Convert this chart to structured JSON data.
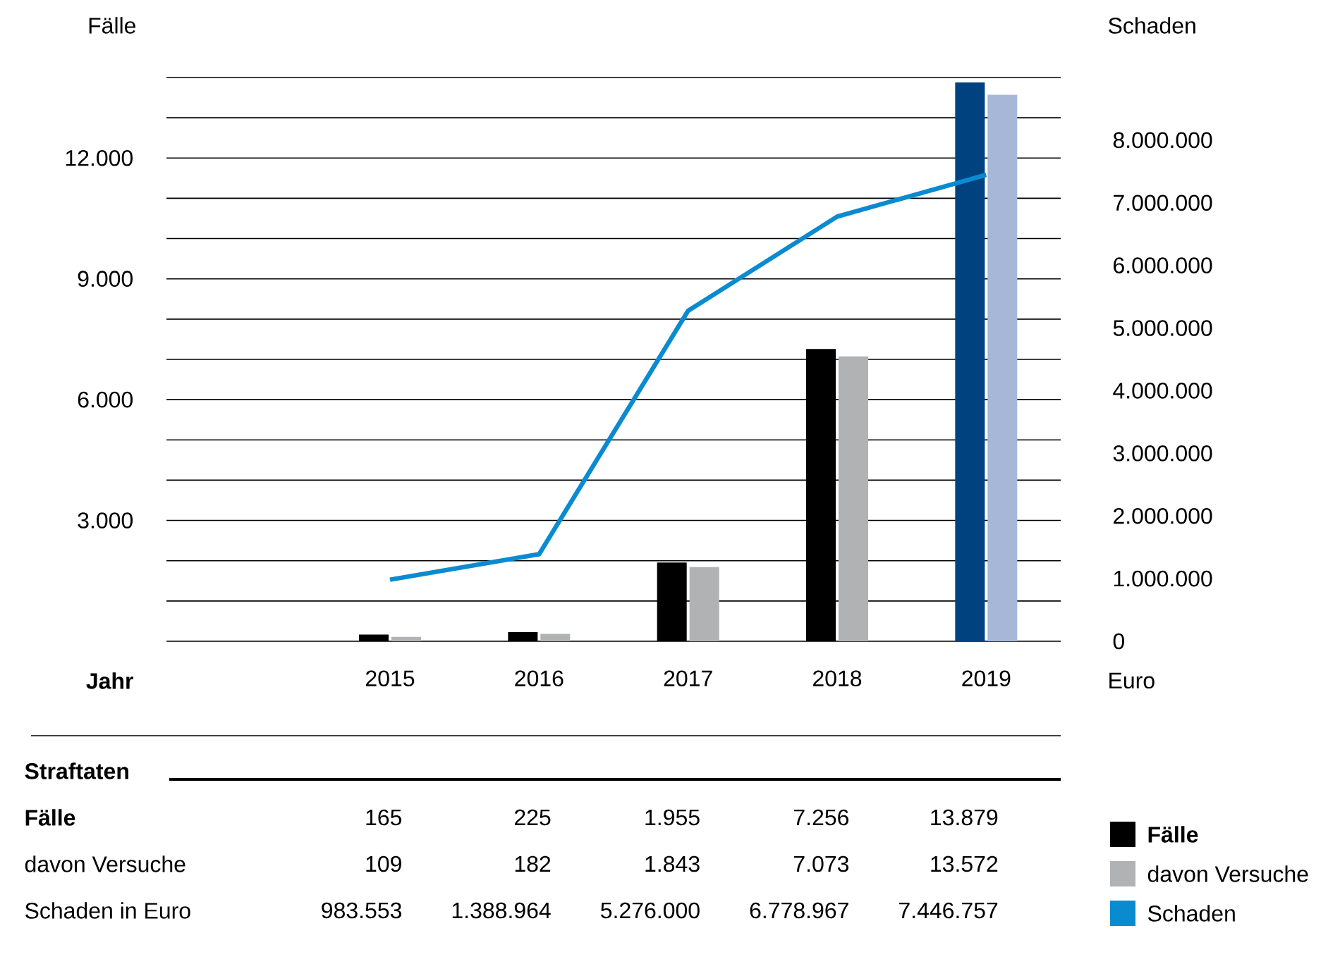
{
  "chart_data": {
    "type": "bar",
    "ylabel": "Fälle",
    "y2label": "Schaden",
    "xlabel": "Jahr",
    "categories": [
      null,
      "2015",
      "2016",
      "2017",
      "2018",
      "2019"
    ],
    "series": [
      {
        "name": "Fälle",
        "color": "#000000",
        "colors": [
          "#000000",
          "#000000",
          "#000000",
          "#000000",
          "#000000",
          "#00427f"
        ],
        "values": [
          null,
          165,
          225,
          1955,
          7256,
          13879
        ],
        "value_labels": [
          null,
          "165",
          "225",
          "1.955",
          "7.256",
          "13.879"
        ]
      },
      {
        "name": "davon Versuche",
        "color": "#b1b2b4",
        "colors": [
          "#b1b2b4",
          "#b1b2b4",
          "#b1b2b4",
          "#b1b2b4",
          "#b1b2b4",
          "#a7b7d8"
        ],
        "values": [
          null,
          109,
          182,
          1843,
          7073,
          13572
        ],
        "value_labels": [
          null,
          "109",
          "182",
          "1.843",
          "7.073",
          "13.572"
        ]
      },
      {
        "name": "Schaden",
        "type": "line",
        "axis": "y2",
        "color": "#0a8bd0",
        "values": [
          null,
          983553,
          1388964,
          5276000,
          6778967,
          7446757
        ],
        "value_labels": [
          null,
          "983.553",
          "1.388.964",
          "5.276.000",
          "6.778.967",
          "7.446.757"
        ]
      }
    ],
    "ylim": [
      0,
      14000
    ],
    "yticks": [
      {
        "value": 0,
        "label": null
      },
      {
        "value": 1000,
        "label": null
      },
      {
        "value": 2000,
        "label": null
      },
      {
        "value": 3000,
        "label": "3.000"
      },
      {
        "value": 4000,
        "label": null
      },
      {
        "value": 5000,
        "label": null
      },
      {
        "value": 6000,
        "label": "6.000"
      },
      {
        "value": 7000,
        "label": null
      },
      {
        "value": 8000,
        "label": null
      },
      {
        "value": 9000,
        "label": "9.000"
      },
      {
        "value": 10000,
        "label": null
      },
      {
        "value": 11000,
        "label": null
      },
      {
        "value": 12000,
        "label": "12.000"
      },
      {
        "value": 13000,
        "label": null
      },
      {
        "value": 14000,
        "label": null
      }
    ],
    "y2lim": [
      0,
      9000000
    ],
    "y2ticks": [
      0,
      {
        "value": 1000000,
        "label": "1.000.000"
      },
      {
        "value": 2000000,
        "label": "2.000.000"
      },
      {
        "value": 3000000,
        "label": "3.000.000"
      },
      {
        "value": 4000000,
        "label": "4.000.000"
      },
      {
        "value": 5000000,
        "label": "5.000.000"
      },
      {
        "value": 6000000,
        "label": "6.000.000"
      },
      {
        "value": 7000000,
        "label": "7.000.000"
      },
      {
        "value": 8000000,
        "label": "8.000.000"
      },
      {
        "value": 9000000,
        "label": null
      }
    ],
    "grid": "y",
    "legend": "bottom right",
    "annotations": [
      "Euro",
      "Straftaten",
      "Fälle",
      "davon Versuche",
      "Schaden in Euro"
    ]
  }
}
